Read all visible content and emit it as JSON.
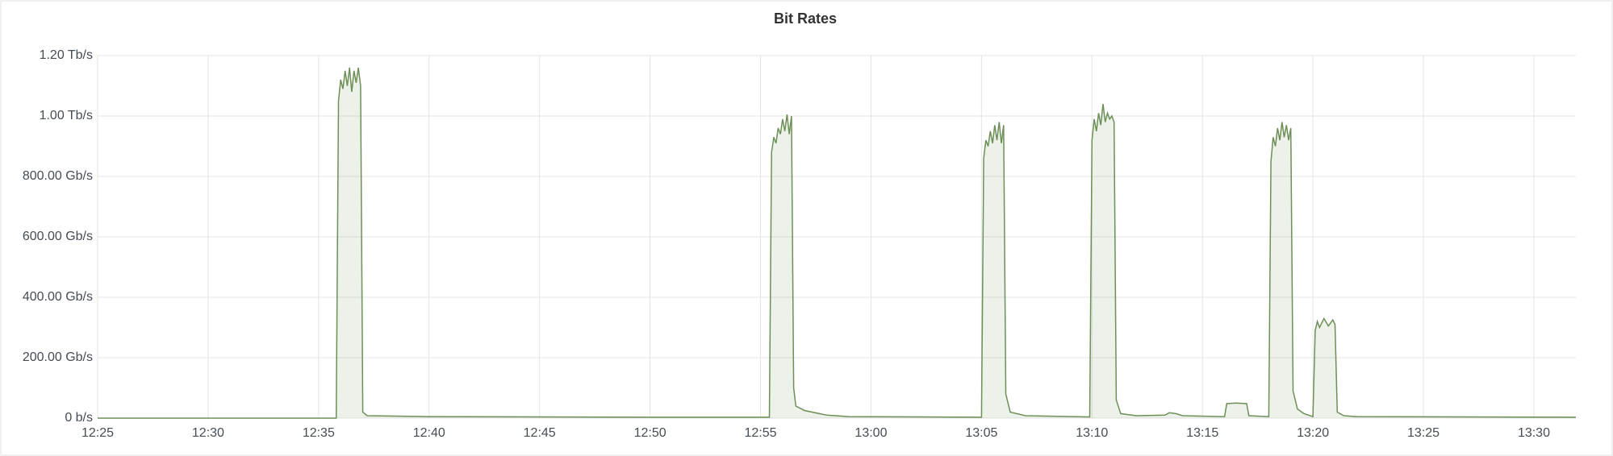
{
  "chart_data": {
    "type": "area",
    "title": "Bit Rates",
    "x": [
      745,
      755.8,
      755.9,
      756.0,
      756.1,
      756.2,
      756.3,
      756.4,
      756.5,
      756.6,
      756.7,
      756.8,
      756.9,
      757.0,
      757.2,
      760,
      770,
      775.4,
      775.5,
      775.6,
      775.7,
      775.8,
      775.9,
      776.0,
      776.1,
      776.2,
      776.3,
      776.4,
      776.5,
      776.6,
      777,
      778,
      779,
      785,
      785.1,
      785.2,
      785.3,
      785.4,
      785.5,
      785.6,
      785.7,
      785.8,
      785.9,
      786.0,
      786.1,
      786.3,
      787,
      789.9,
      790.0,
      790.1,
      790.2,
      790.3,
      790.4,
      790.5,
      790.6,
      790.7,
      790.8,
      790.9,
      791.0,
      791.1,
      791.3,
      792,
      793.3,
      793.5,
      793.8,
      794.1,
      796.0,
      796.1,
      796.5,
      797.0,
      797.1,
      798.0,
      798.1,
      798.2,
      798.3,
      798.4,
      798.5,
      798.6,
      798.7,
      798.8,
      798.9,
      799.0,
      799.1,
      799.3,
      799.6,
      800.0,
      800.1,
      800.2,
      800.3,
      800.5,
      800.7,
      800.9,
      801.0,
      801.1,
      801.4,
      802,
      811.9
    ],
    "series": [
      {
        "color": "#6e8f57",
        "values": [
          0,
          0,
          1050,
          1120,
          1090,
          1150,
          1100,
          1160,
          1080,
          1150,
          1110,
          1160,
          1100,
          20,
          8,
          5,
          3,
          3,
          880,
          930,
          910,
          960,
          940,
          990,
          950,
          1005,
          940,
          1000,
          100,
          40,
          25,
          10,
          5,
          3,
          860,
          920,
          900,
          950,
          910,
          970,
          920,
          980,
          910,
          970,
          80,
          20,
          8,
          4,
          920,
          990,
          950,
          1010,
          970,
          1040,
          980,
          1010,
          990,
          1000,
          980,
          60,
          15,
          8,
          10,
          18,
          15,
          8,
          5,
          48,
          50,
          48,
          8,
          5,
          850,
          930,
          900,
          960,
          920,
          980,
          930,
          970,
          920,
          960,
          90,
          30,
          15,
          5,
          290,
          320,
          300,
          330,
          305,
          325,
          310,
          20,
          8,
          5,
          3
        ]
      }
    ],
    "xlim": [
      745,
      811.9
    ],
    "ylim": [
      0,
      1200
    ],
    "xticks": [
      {
        "value": 745,
        "label": "12:25"
      },
      {
        "value": 750,
        "label": "12:30"
      },
      {
        "value": 755,
        "label": "12:35"
      },
      {
        "value": 760,
        "label": "12:40"
      },
      {
        "value": 765,
        "label": "12:45"
      },
      {
        "value": 770,
        "label": "12:50"
      },
      {
        "value": 775,
        "label": "12:55"
      },
      {
        "value": 780,
        "label": "13:00"
      },
      {
        "value": 785,
        "label": "13:05"
      },
      {
        "value": 790,
        "label": "13:10"
      },
      {
        "value": 795,
        "label": "13:15"
      },
      {
        "value": 800,
        "label": "13:20"
      },
      {
        "value": 805,
        "label": "13:25"
      },
      {
        "value": 810,
        "label": "13:30"
      }
    ],
    "yticks": [
      {
        "value": 0,
        "label": "0 b/s"
      },
      {
        "value": 200,
        "label": "200.00 Gb/s"
      },
      {
        "value": 400,
        "label": "400.00 Gb/s"
      },
      {
        "value": 600,
        "label": "600.00 Gb/s"
      },
      {
        "value": 800,
        "label": "800.00 Gb/s"
      },
      {
        "value": 1000,
        "label": "1.00 Tb/s"
      },
      {
        "value": 1200,
        "label": "1.20 Tb/s"
      }
    ],
    "grid": true
  }
}
